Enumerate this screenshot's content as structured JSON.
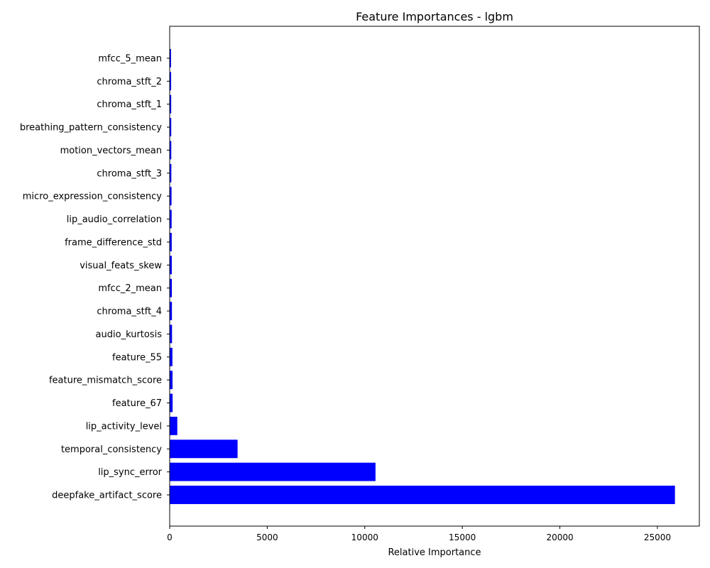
{
  "chart_data": {
    "type": "bar",
    "orientation": "horizontal",
    "title": "Feature Importances - lgbm",
    "xlabel": "Relative Importance",
    "ylabel": "",
    "xlim": [
      0,
      27150
    ],
    "xticks": [
      0,
      5000,
      10000,
      15000,
      20000,
      25000
    ],
    "grid": false,
    "bar_color": "#0000ff",
    "categories": [
      "deepfake_artifact_score",
      "lip_sync_error",
      "temporal_consistency",
      "lip_activity_level",
      "feature_67",
      "feature_mismatch_score",
      "feature_55",
      "audio_kurtosis",
      "chroma_stft_4",
      "mfcc_2_mean",
      "visual_feats_skew",
      "frame_difference_std",
      "lip_audio_correlation",
      "micro_expression_consistency",
      "chroma_stft_3",
      "motion_vectors_mean",
      "breathing_pattern_consistency",
      "chroma_stft_1",
      "chroma_stft_2",
      "mfcc_5_mean"
    ],
    "values": [
      25900,
      10550,
      3480,
      390,
      150,
      145,
      140,
      120,
      115,
      110,
      108,
      105,
      100,
      95,
      85,
      82,
      80,
      78,
      75,
      70
    ]
  }
}
